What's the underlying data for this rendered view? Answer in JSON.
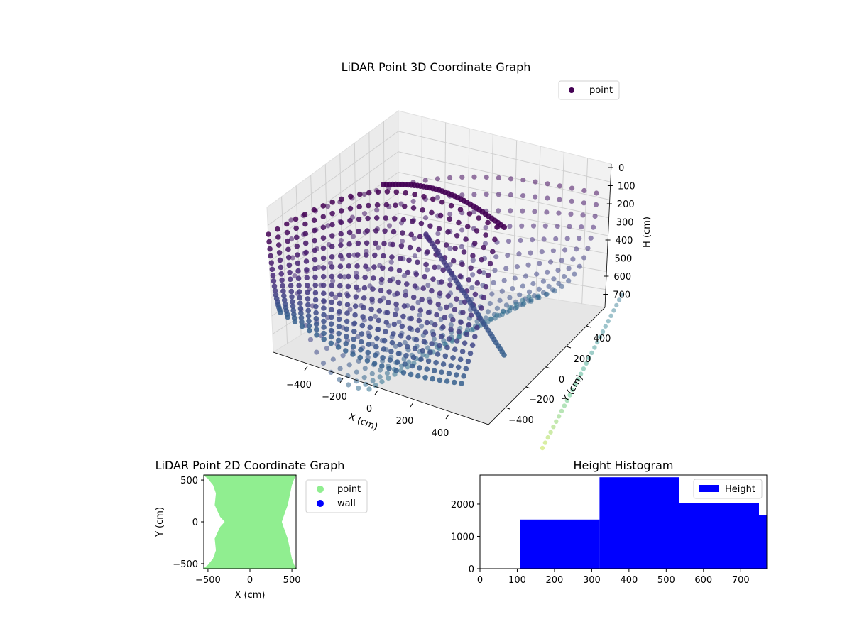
{
  "chart_data": [
    {
      "type": "scatter3d",
      "title": "LiDAR Point 3D Coordinate Graph",
      "xlabel": "X (cm)",
      "ylabel": "Y (cm)",
      "zlabel": "H (cm)",
      "x_ticks": [
        -400,
        -200,
        0,
        200,
        400
      ],
      "y_ticks": [
        -400,
        -200,
        0,
        200,
        400
      ],
      "z_ticks": [
        0,
        100,
        200,
        300,
        400,
        500,
        600,
        700
      ],
      "z_inverted": true,
      "legend": [
        "point"
      ],
      "colormap": "viridis",
      "colors": {
        "point": "#440154",
        "mid": "#31688e",
        "light": "#b5de2b"
      }
    },
    {
      "type": "scatter",
      "title": "LiDAR Point 2D Coordinate Graph",
      "xlabel": "X (cm)",
      "ylabel": "Y (cm)",
      "xlim": [
        -550,
        550
      ],
      "ylim": [
        -560,
        560
      ],
      "x_ticks": [
        -500,
        0,
        500
      ],
      "y_ticks": [
        -500,
        0,
        500
      ],
      "series": [
        {
          "name": "point",
          "color": "#90ee90"
        },
        {
          "name": "wall",
          "color": "#0000ff"
        }
      ]
    },
    {
      "type": "bar",
      "title": "Height Histogram",
      "xlim": [
        0,
        770
      ],
      "ylim": [
        0,
        2900
      ],
      "x_ticks": [
        0,
        100,
        200,
        300,
        400,
        500,
        600,
        700
      ],
      "y_ticks": [
        0,
        1000,
        2000
      ],
      "legend": [
        "Height"
      ],
      "color": "#0000ff",
      "bins": [
        {
          "start": 107,
          "end": 321,
          "count": 1520
        },
        {
          "start": 321,
          "end": 535,
          "count": 2830
        },
        {
          "start": 535,
          "end": 749,
          "count": 2030
        },
        {
          "start": 749,
          "end": 770,
          "count": 1670
        }
      ]
    }
  ]
}
